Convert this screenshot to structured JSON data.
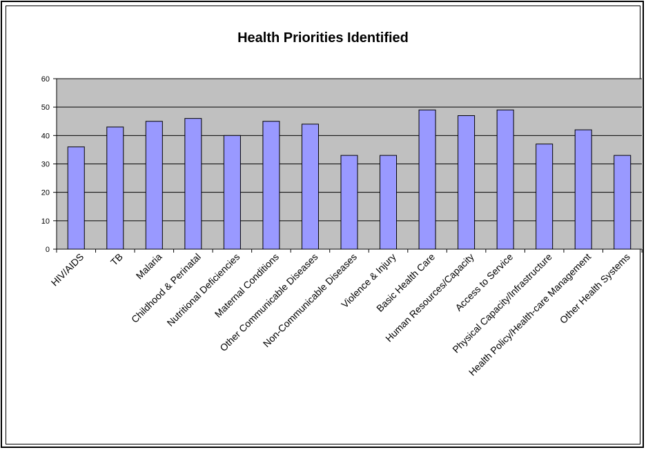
{
  "chart_data": {
    "type": "bar",
    "title": "Health Priorities Identified",
    "xlabel": "",
    "ylabel": "",
    "ylim": [
      0,
      60
    ],
    "yticks": [
      0,
      10,
      20,
      30,
      40,
      50,
      60
    ],
    "grid": true,
    "legend": "none",
    "categories": [
      "HIV/AIDS",
      "TB",
      "Malaria",
      "Childhood & Perinatal",
      "Nutritional Deficiencies",
      "Maternal Conditions",
      "Other Communicable Diseases",
      "Non-Communicable Diseases",
      "Violence & Injury",
      "Basic Health Care",
      "Human Resources/Capacity",
      "Access to Service",
      "Physical Capacity/Infrastructure",
      "Health Policy/Health-care Management",
      "Other Health Systems"
    ],
    "values": [
      36,
      43,
      45,
      46,
      40,
      45,
      44,
      33,
      33,
      49,
      47,
      49,
      37,
      42,
      33
    ],
    "colors": {
      "bar_fill": "#9999ff",
      "bar_stroke": "#000000",
      "plot_background": "#c0c0c0",
      "gridline": "#000000"
    }
  }
}
